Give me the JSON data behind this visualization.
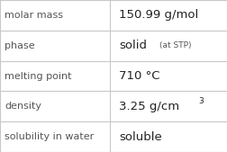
{
  "rows": [
    {
      "label": "molar mass",
      "value": "150.99 g/mol",
      "type": "plain"
    },
    {
      "label": "phase",
      "value": "solid",
      "suffix": "(at STP)",
      "type": "phase"
    },
    {
      "label": "melting point",
      "value": "710 °C",
      "type": "plain"
    },
    {
      "label": "density",
      "value": "3.25 g/cm",
      "superscript": "3",
      "type": "density"
    },
    {
      "label": "solubility in water",
      "value": "soluble",
      "type": "plain"
    }
  ],
  "n_rows": 5,
  "col_split": 0.485,
  "background_color": "#ffffff",
  "line_color": "#c8c8c8",
  "label_fontsize": 8.0,
  "value_fontsize": 9.5,
  "suffix_fontsize": 6.5,
  "super_fontsize": 6.5,
  "label_color": "#555555",
  "value_color": "#222222",
  "font_family": "DejaVu Sans"
}
